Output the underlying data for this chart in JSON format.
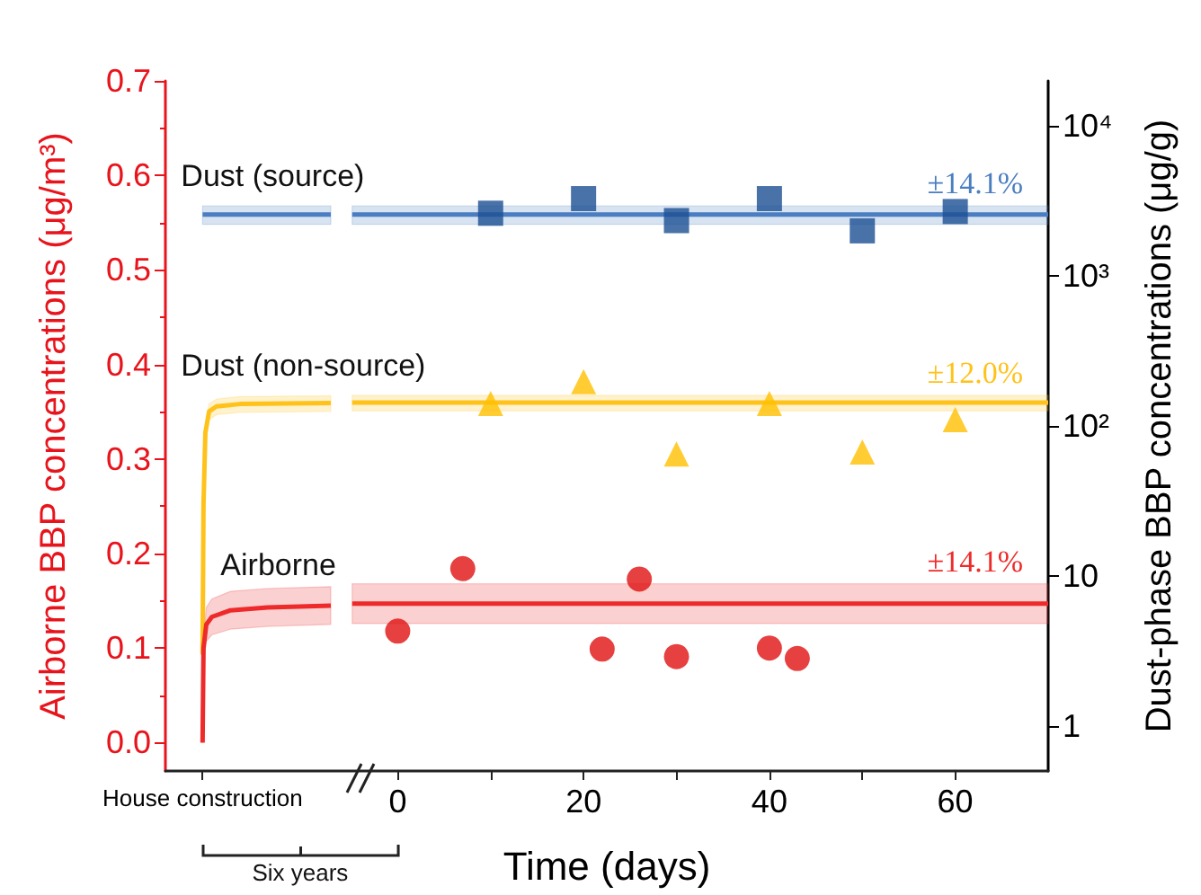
{
  "chart_data": {
    "type": "scatter",
    "xlabel": "Time (days)",
    "ylabel": "Airborne BBP concentrations (μg/m³)",
    "y2label": "Dust-phase BBP concentrations (μg/g)",
    "xlim": [
      -25,
      70
    ],
    "xticks": [
      {
        "value": -21,
        "label": "House construction"
      },
      0,
      {
        "value": 10,
        "label": null
      },
      20,
      {
        "value": 30,
        "label": null
      },
      40,
      {
        "value": 50,
        "label": null
      },
      60
    ],
    "ylim": [
      -0.03,
      0.7
    ],
    "yticks": [
      {
        "value": 0,
        "label": "0.0"
      },
      0.1,
      0.2,
      0.3,
      0.4,
      0.5,
      0.6,
      0.7
    ],
    "y2lim": [
      0.5,
      20000
    ],
    "y2ticks": [
      1,
      10,
      {
        "value": 100,
        "label": "10²"
      },
      {
        "value": 1000,
        "label": "10³"
      },
      {
        "value": 10000,
        "label": "10⁴"
      }
    ],
    "log": "y2",
    "grid": false,
    "legend": false,
    "series": [
      {
        "name": "Dust (source)",
        "type": "line",
        "axis": "y2",
        "color": "#4a7ec0",
        "x": [
          -21,
          -7.2,
          -6,
          -4.9,
          70
        ],
        "values": [
          2570,
          2570,
          null,
          2570,
          2570
        ],
        "lower": [
          2210,
          2210,
          null,
          2210,
          2210
        ],
        "upper": [
          2930,
          2930,
          null,
          2930,
          2930
        ]
      },
      {
        "axis": "y2",
        "marker": "square",
        "color": "#1b4f93",
        "x": [
          10,
          20,
          30,
          40,
          50,
          60
        ],
        "values": [
          2620,
          3280,
          2340,
          3280,
          2000,
          2690
        ]
      },
      {
        "name": "Dust (non-source)",
        "type": "line",
        "axis": "y2",
        "color": "#ffc21a",
        "x": [
          -21,
          -20.9,
          -20.7,
          -20.3,
          -19.5,
          -17,
          -7.2,
          -6,
          -4.9,
          70
        ],
        "values": [
          3,
          30,
          90,
          125,
          135,
          140,
          142,
          null,
          143,
          143
        ],
        "lower": [
          2.6,
          26,
          79,
          110,
          119,
          123,
          125,
          null,
          126,
          126
        ],
        "upper": [
          3.4,
          34,
          101,
          140,
          151,
          157,
          159,
          null,
          160,
          160
        ]
      },
      {
        "axis": "y2",
        "marker": "triangle",
        "color": "#ffc000",
        "x": [
          10,
          20,
          30,
          40,
          50,
          60
        ],
        "values": [
          141,
          197,
          65,
          141,
          67,
          110
        ]
      },
      {
        "name": "Airborne",
        "type": "line",
        "color": "#ee2a2a",
        "x": [
          -21,
          -20.9,
          -20.6,
          -20,
          -18,
          -14,
          -7.2,
          -6,
          -4.9,
          70
        ],
        "values": [
          0,
          0.1,
          0.125,
          0.133,
          0.14,
          0.143,
          0.145,
          null,
          0.147,
          0.147
        ],
        "lower": [
          0,
          0.086,
          0.107,
          0.114,
          0.12,
          0.123,
          0.125,
          null,
          0.126,
          0.126
        ],
        "upper": [
          0,
          0.114,
          0.143,
          0.152,
          0.16,
          0.163,
          0.165,
          null,
          0.168,
          0.168
        ]
      },
      {
        "marker": "circle",
        "color": "#e01010",
        "x": [
          0,
          7,
          22,
          26,
          30,
          40,
          43
        ],
        "values": [
          0.118,
          0.184,
          0.099,
          0.173,
          0.091,
          0.1,
          0.089
        ]
      }
    ],
    "annotations": [
      "±14.1%",
      "±12.0%",
      "±14.1%",
      "Six years"
    ]
  }
}
